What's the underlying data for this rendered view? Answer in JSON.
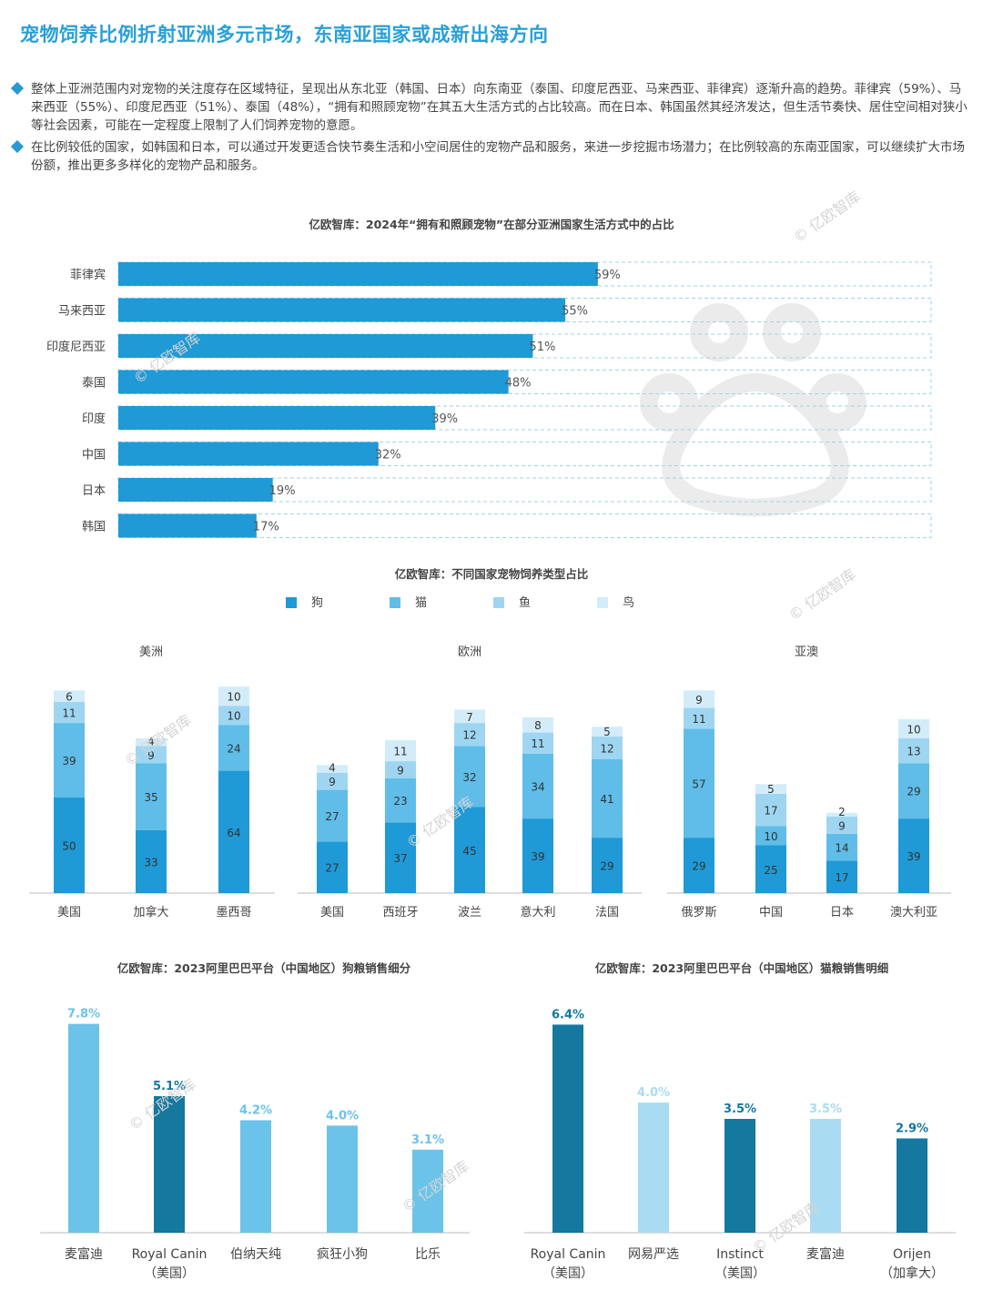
{
  "header": {
    "title": "宠物饲养比例折射亚洲多元市场，东南亚国家或成新出海方向"
  },
  "bullets": [
    "整体上亚洲范围内对宠物的关注度存在区域特征，呈现出从东北亚（韩国、日本）向东南亚（泰国、印度尼西亚、马来西亚、菲律宾）逐渐升高的趋势。菲律宾（59%）、马来西亚（55%）、印度尼西亚（51%）、泰国（48%），“拥有和照顾宠物”在其五大生活方式的占比较高。而在日本、韩国虽然其经济发达，但生活节奏快、居住空间相对狭小等社会因素，可能在一定程度上限制了人们饲养宠物的意愿。",
    "在比例较低的国家，如韩国和日本，可以通过开发更适合快节奏生活和小空间居住的宠物产品和服务，来进一步挖掘市场潜力；在比例较高的东南亚国家，可以继续扩大市场份额，推出更多多样化的宠物产品和服务。"
  ],
  "watermark": "© 亿欧智库",
  "colors": {
    "dog": "#1f9ad6",
    "cat": "#5fbde8",
    "fish": "#9ed6f2",
    "bird": "#d3ecf9",
    "dark": "#15789f",
    "light": "#6cc3ea",
    "pale": "#a9dcf3"
  },
  "chart_data": [
    {
      "type": "bar",
      "orientation": "horizontal",
      "title": "亿欧智库：2024年“拥有和照顾宠物”在部分亚洲国家生活方式中的占比",
      "categories": [
        "菲律宾",
        "马来西亚",
        "印度尼西亚",
        "泰国",
        "印度",
        "中国",
        "日本",
        "韩国"
      ],
      "values": [
        59,
        55,
        51,
        48,
        39,
        32,
        19,
        17
      ],
      "labels": [
        "59%",
        "55%",
        "51%",
        "48%",
        "39%",
        "32%",
        "19%",
        "17%"
      ],
      "xlim": [
        0,
        100
      ]
    },
    {
      "type": "bar",
      "stacked": true,
      "title": "亿欧智库：不同国家宠物饲养类型占比",
      "legend": [
        "狗",
        "猫",
        "鱼",
        "鸟"
      ],
      "groups": [
        {
          "name": "美洲",
          "categories": [
            "美国",
            "加拿大",
            "墨西哥"
          ],
          "values": [
            [
              50,
              39,
              11,
              6
            ],
            [
              33,
              35,
              9,
              4
            ],
            [
              64,
              24,
              10,
              10
            ]
          ]
        },
        {
          "name": "欧洲",
          "categories": [
            "美国",
            "西班牙",
            "波兰",
            "意大利",
            "法国"
          ],
          "values": [
            [
              27,
              27,
              9,
              4
            ],
            [
              37,
              23,
              9,
              11
            ],
            [
              45,
              32,
              12,
              7
            ],
            [
              39,
              34,
              11,
              8
            ],
            [
              29,
              41,
              12,
              5
            ]
          ]
        },
        {
          "name": "亚澳",
          "categories": [
            "俄罗斯",
            "中国",
            "日本",
            "澳大利亚"
          ],
          "values": [
            [
              29,
              57,
              11,
              9
            ],
            [
              25,
              10,
              17,
              5
            ],
            [
              17,
              14,
              9,
              2
            ],
            [
              39,
              29,
              13,
              10
            ]
          ]
        }
      ]
    },
    {
      "type": "bar",
      "title": "亿欧智库：2023阿里巴巴平台（中国地区）狗粮销售细分",
      "categories": [
        [
          "麦富迪"
        ],
        [
          "Royal Canin",
          "（美国）"
        ],
        [
          "伯纳天纯"
        ],
        [
          "疯狂小狗"
        ],
        [
          "比乐"
        ]
      ],
      "values": [
        7.8,
        5.1,
        4.2,
        4.0,
        3.1
      ],
      "labels": [
        "7.8%",
        "5.1%",
        "4.2%",
        "4.0%",
        "3.1%"
      ],
      "ylim": [
        0,
        8.5
      ]
    },
    {
      "type": "bar",
      "title": "亿欧智库：2023阿里巴巴平台（中国地区）猫粮销售明细",
      "categories": [
        [
          "Royal Canin",
          "（美国）"
        ],
        [
          "网易严选"
        ],
        [
          "Instinct",
          "（美国）"
        ],
        [
          "麦富迪"
        ],
        [
          "Orijen",
          "（加拿大）"
        ]
      ],
      "values": [
        6.4,
        4.0,
        3.5,
        3.5,
        2.9
      ],
      "labels": [
        "6.4%",
        "4.0%",
        "3.5%",
        "3.5%",
        "2.9%"
      ],
      "ylim": [
        0,
        7.0
      ]
    }
  ]
}
